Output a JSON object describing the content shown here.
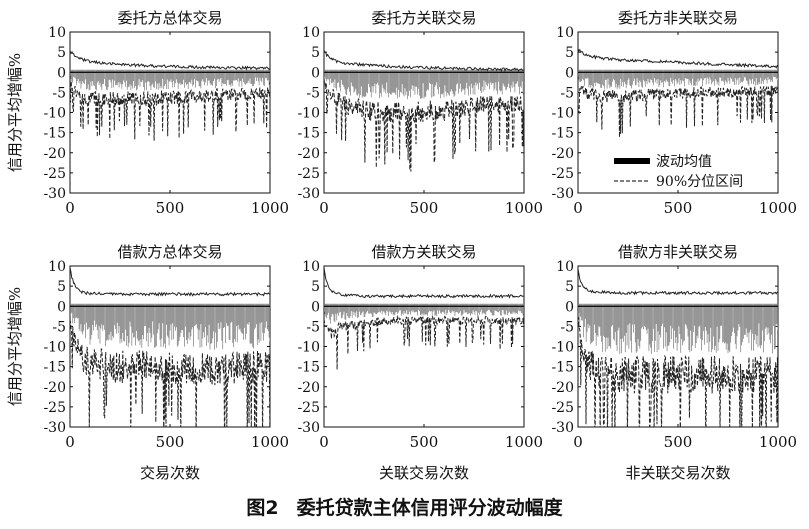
{
  "figure": {
    "caption_label": "图2",
    "caption_title": "委托贷款主体信用评分波动幅度"
  },
  "chart_data": {
    "type": "line",
    "layout": "grid-2x3",
    "shared": {
      "xlim": [
        0,
        1000
      ],
      "ylim": [
        -30,
        10
      ],
      "xticks": [
        0,
        500,
        1000
      ],
      "yticks": [
        10,
        5,
        0,
        -5,
        -10,
        -15,
        -20,
        -25,
        -30
      ],
      "ylabel": "信用分平均增幅%",
      "grid": false
    },
    "legend": {
      "panel": 2,
      "placement": "lower-right",
      "entries": [
        {
          "label": "波动均值",
          "style": "solid-thick"
        },
        {
          "label": "90%分位区间",
          "style": "dashed"
        }
      ]
    },
    "panels": [
      {
        "title": "委托方总体交易",
        "xlabel": "",
        "series": [
          {
            "name": "波动均值",
            "x": [
              0,
              10,
              30,
              60,
              100,
              200,
              400,
              600,
              800,
              1000
            ],
            "y": [
              0,
              0,
              0,
              0,
              0,
              0,
              0,
              0,
              0,
              0
            ]
          },
          {
            "name": "90%分位区间上界",
            "x": [
              0,
              10,
              30,
              60,
              100,
              200,
              400,
              600,
              800,
              1000
            ],
            "y": [
              5.2,
              4.6,
              3.9,
              3.2,
              2.6,
              2.1,
              1.6,
              1.3,
              1.1,
              1.0
            ]
          },
          {
            "name": "90%分位区间下界",
            "x": [
              0,
              10,
              30,
              60,
              100,
              200,
              400,
              600,
              800,
              1000
            ],
            "y": [
              -2.5,
              -3.5,
              -5,
              -6,
              -6.5,
              -6.5,
              -6.5,
              -6,
              -5.5,
              -5
            ]
          }
        ]
      },
      {
        "title": "委托方关联交易",
        "xlabel": "",
        "series": [
          {
            "name": "波动均值",
            "x": [
              0,
              10,
              30,
              60,
              100,
              200,
              400,
              600,
              800,
              1000
            ],
            "y": [
              0,
              0,
              0,
              0,
              0,
              0,
              0,
              0,
              0,
              0
            ]
          },
          {
            "name": "90%分位区间上界",
            "x": [
              0,
              10,
              30,
              60,
              100,
              200,
              400,
              600,
              800,
              1000
            ],
            "y": [
              5.5,
              4.5,
              3.6,
              2.8,
              2.3,
              1.8,
              1.3,
              1.0,
              0.8,
              0.6
            ]
          },
          {
            "name": "90%分位区间下界",
            "x": [
              0,
              10,
              30,
              60,
              100,
              200,
              400,
              600,
              800,
              1000
            ],
            "y": [
              -2,
              -3.5,
              -5,
              -6.5,
              -8,
              -9.5,
              -10,
              -9.5,
              -8,
              -8
            ]
          }
        ]
      },
      {
        "title": "委托方非关联交易",
        "xlabel": "",
        "series": [
          {
            "name": "波动均值",
            "x": [
              0,
              10,
              30,
              60,
              100,
              200,
              400,
              600,
              800,
              1000
            ],
            "y": [
              0,
              0,
              0,
              0,
              0,
              0,
              0,
              0,
              0,
              0
            ]
          },
          {
            "name": "90%分位区间上界",
            "x": [
              0,
              10,
              30,
              60,
              100,
              200,
              400,
              600,
              800,
              1000
            ],
            "y": [
              6.0,
              5.2,
              4.5,
              4.0,
              3.6,
              3.1,
              2.7,
              2.2,
              1.8,
              1.4
            ]
          },
          {
            "name": "90%分位区间下界",
            "x": [
              0,
              10,
              30,
              60,
              100,
              200,
              400,
              600,
              800,
              1000
            ],
            "y": [
              -3,
              -4,
              -5,
              -5.5,
              -6,
              -6,
              -5.5,
              -5,
              -5,
              -4.5
            ]
          }
        ]
      },
      {
        "title": "借款方总体交易",
        "xlabel": "交易次数",
        "series": [
          {
            "name": "波动均值",
            "x": [
              0,
              10,
              30,
              60,
              100,
              200,
              400,
              600,
              800,
              1000
            ],
            "y": [
              0,
              0,
              0,
              0,
              0,
              0,
              0,
              0,
              0,
              0
            ]
          },
          {
            "name": "90%分位区间上界",
            "x": [
              0,
              10,
              30,
              60,
              100,
              200,
              400,
              600,
              800,
              1000
            ],
            "y": [
              9.5,
              7.0,
              4.5,
              3.5,
              3.2,
              3.0,
              3.0,
              3.0,
              3.0,
              3.0
            ]
          },
          {
            "name": "90%分位区间下界",
            "x": [
              0,
              10,
              30,
              60,
              100,
              200,
              400,
              600,
              800,
              1000
            ],
            "y": [
              -3,
              -6,
              -10,
              -13,
              -14,
              -15,
              -15,
              -15.5,
              -15.5,
              -15
            ]
          }
        ]
      },
      {
        "title": "借款方关联交易",
        "xlabel": "关联交易次数",
        "series": [
          {
            "name": "波动均值",
            "x": [
              0,
              10,
              30,
              60,
              100,
              200,
              400,
              600,
              800,
              1000
            ],
            "y": [
              0,
              0,
              0,
              0,
              0,
              0,
              0,
              0,
              0,
              0
            ]
          },
          {
            "name": "90%分位区间上界",
            "x": [
              0,
              10,
              30,
              60,
              100,
              200,
              400,
              600,
              800,
              1000
            ],
            "y": [
              9.5,
              6.5,
              4.0,
              3.2,
              2.8,
              2.5,
              2.5,
              2.5,
              2.5,
              2.5
            ]
          },
          {
            "name": "90%分位区间下界",
            "x": [
              0,
              10,
              30,
              60,
              100,
              200,
              400,
              600,
              800,
              1000
            ],
            "y": [
              -3,
              -5,
              -6.5,
              -6,
              -5,
              -4,
              -3.5,
              -3.5,
              -3.5,
              -3.5
            ]
          }
        ]
      },
      {
        "title": "借款方非关联交易",
        "xlabel": "非关联交易次数",
        "series": [
          {
            "name": "波动均值",
            "x": [
              0,
              10,
              30,
              60,
              100,
              200,
              400,
              600,
              800,
              1000
            ],
            "y": [
              0,
              0,
              0,
              0,
              0,
              0,
              0,
              0,
              0,
              0
            ]
          },
          {
            "name": "90%分位区间上界",
            "x": [
              0,
              10,
              30,
              60,
              100,
              200,
              400,
              600,
              800,
              1000
            ],
            "y": [
              9.5,
              6.5,
              4.5,
              3.8,
              3.5,
              3.3,
              3.3,
              3.3,
              3.3,
              3.3
            ]
          },
          {
            "name": "90%分位区间下界",
            "x": [
              0,
              10,
              30,
              60,
              100,
              200,
              400,
              600,
              800,
              1000
            ],
            "y": [
              -3,
              -7,
              -12,
              -14.5,
              -16,
              -17,
              -17,
              -17,
              -17,
              -17
            ]
          }
        ]
      }
    ]
  }
}
